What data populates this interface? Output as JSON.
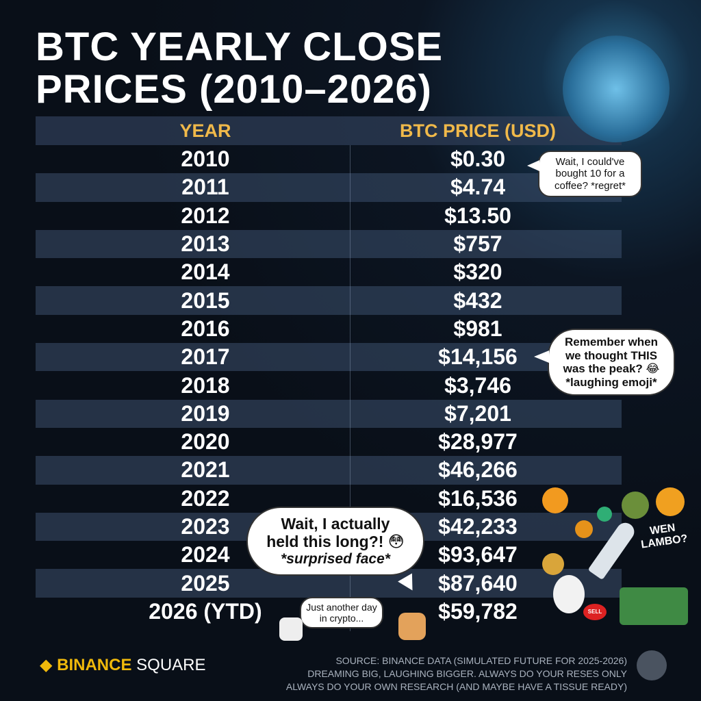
{
  "header": {
    "title_lines": [
      "BTC YEARLY CLOSE",
      "PRICES (2010–2026)"
    ]
  },
  "table": {
    "columns": [
      "YEAR",
      "BTC PRICE (USD)"
    ],
    "rows": [
      [
        "2010",
        "$0.30"
      ],
      [
        "2011",
        "$4.74"
      ],
      [
        "2012",
        "$13.50"
      ],
      [
        "2013",
        "$757"
      ],
      [
        "2014",
        "$320"
      ],
      [
        "2015",
        "$432"
      ],
      [
        "2016",
        "$981"
      ],
      [
        "2017",
        "$14,156"
      ],
      [
        "2018",
        "$3,746"
      ],
      [
        "2019",
        "$7,201"
      ],
      [
        "2020",
        "$28,977"
      ],
      [
        "2021",
        "$46,266"
      ],
      [
        "2022",
        "$16,536"
      ],
      [
        "2023",
        "$42,233"
      ],
      [
        "2024",
        "$93,647"
      ],
      [
        "2025",
        "$87,640"
      ],
      [
        "2026 (YTD)",
        "$59,782"
      ]
    ]
  },
  "bubbles": [
    {
      "lines": [
        "Wait, I could've",
        "bought 10 for a",
        "coffee? *regret*"
      ]
    },
    {
      "lines": [
        "Remember when",
        "we thought THIS",
        "was the peak? 😂",
        "*laughing emoji*"
      ]
    },
    {
      "lines": [
        "Wait, I actually",
        "held this long?! 😳",
        "*surprised face*"
      ]
    },
    {
      "lines": [
        "Just another day",
        "in crypto..."
      ]
    }
  ],
  "stickers": {
    "wen_lambo": [
      "WEN",
      "LAMBO?"
    ],
    "sell_button": "SELL"
  },
  "footer": {
    "brand": [
      "BINANCE",
      "SQUARE"
    ],
    "notes": [
      "SOURCE: BINANCE DATA (SIMULATED FUTURE FOR 2025-2026)",
      "DREAMING BIG, LAUGHING BIGGER. ALWAYS DO YOUR RESES ONLY",
      "ALWAYS DO YOUR OWN RESEARCH (AND MAYBE HAVE A TISSUE READY)"
    ]
  }
}
